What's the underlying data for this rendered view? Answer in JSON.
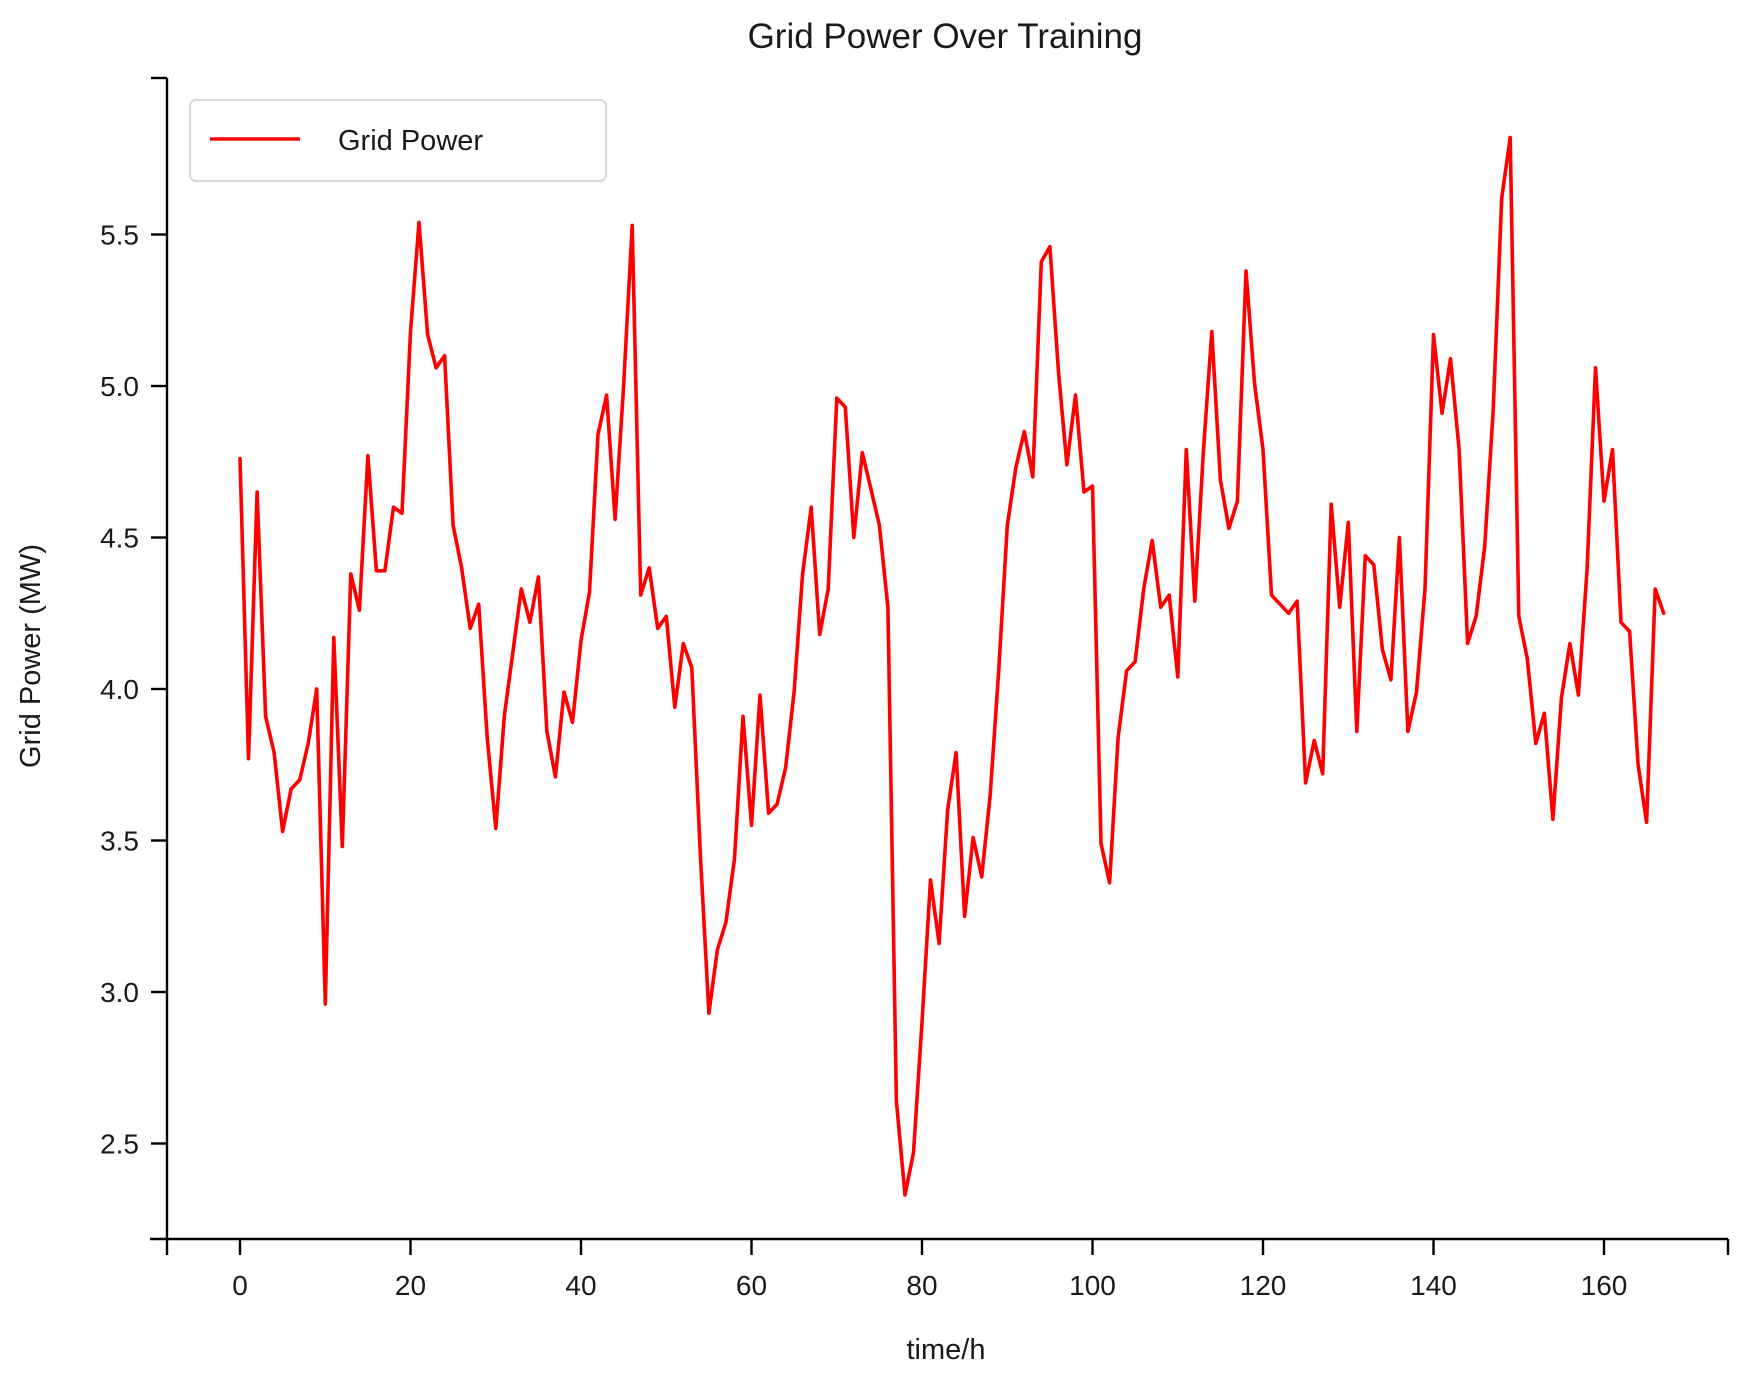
{
  "chart_data": {
    "type": "line",
    "title": "Grid Power Over Training",
    "xlabel": "time/h",
    "ylabel": "Grid Power (MW)",
    "xlim": [
      -8.5,
      175.5
    ],
    "ylim": [
      2.1,
      5.98
    ],
    "xticks": [
      0,
      20,
      40,
      60,
      80,
      100,
      120,
      140,
      160
    ],
    "yticks": [
      2.5,
      3.0,
      3.5,
      4.0,
      4.5,
      5.0,
      5.5
    ],
    "xtick_labels": [
      "0",
      "20",
      "40",
      "60",
      "80",
      "100",
      "120",
      "140",
      "160"
    ],
    "ytick_labels": [
      "2.5",
      "3.0",
      "3.5",
      "4.0",
      "4.5",
      "5.0",
      "5.5"
    ],
    "grid": false,
    "legend": {
      "placement": "top-left"
    },
    "series": [
      {
        "name": "Grid Power",
        "color": "#ff0000",
        "x": [
          0,
          1,
          2,
          3,
          4,
          5,
          6,
          7,
          8,
          9,
          10,
          11,
          12,
          13,
          14,
          15,
          16,
          17,
          18,
          19,
          20,
          21,
          22,
          23,
          24,
          25,
          26,
          27,
          28,
          29,
          30,
          31,
          32,
          33,
          34,
          35,
          36,
          37,
          38,
          39,
          40,
          41,
          42,
          43,
          44,
          45,
          46,
          47,
          48,
          49,
          50,
          51,
          52,
          53,
          54,
          55,
          56,
          57,
          58,
          59,
          60,
          61,
          62,
          63,
          64,
          65,
          66,
          67,
          68,
          69,
          70,
          71,
          72,
          73,
          74,
          75,
          76,
          77,
          78,
          79,
          80,
          81,
          82,
          83,
          84,
          85,
          86,
          87,
          88,
          89,
          90,
          91,
          92,
          93,
          94,
          95,
          96,
          97,
          98,
          99,
          100,
          101,
          102,
          103,
          104,
          105,
          106,
          107,
          108,
          109,
          110,
          111,
          112,
          113,
          114,
          115,
          116,
          117,
          118,
          119,
          120,
          121,
          122,
          123,
          124,
          125,
          126,
          127,
          128,
          129,
          130,
          131,
          132,
          133,
          134,
          135,
          136,
          137,
          138,
          139,
          140,
          141,
          142,
          143,
          144,
          145,
          146,
          147,
          148,
          149,
          150,
          151,
          152,
          153,
          154,
          155,
          156,
          157,
          158,
          159,
          160,
          161,
          162,
          163,
          164,
          165,
          166,
          167
        ],
        "y": [
          4.76,
          3.77,
          4.65,
          3.91,
          3.79,
          3.53,
          3.67,
          3.7,
          3.82,
          4.0,
          2.96,
          4.17,
          3.48,
          4.38,
          4.26,
          4.77,
          4.39,
          4.39,
          4.6,
          4.58,
          5.18,
          5.54,
          5.17,
          5.06,
          5.1,
          4.54,
          4.4,
          4.2,
          4.28,
          3.84,
          3.54,
          3.91,
          4.12,
          4.33,
          4.22,
          4.37,
          3.86,
          3.71,
          3.99,
          3.89,
          4.16,
          4.32,
          4.84,
          4.97,
          4.56,
          5.0,
          5.53,
          4.31,
          4.4,
          4.2,
          4.24,
          3.94,
          4.15,
          4.07,
          3.45,
          2.93,
          3.14,
          3.23,
          3.44,
          3.91,
          3.55,
          3.98,
          3.59,
          3.62,
          3.74,
          3.99,
          4.38,
          4.6,
          4.18,
          4.33,
          4.96,
          4.93,
          4.5,
          4.78,
          4.66,
          4.54,
          4.27,
          2.64,
          2.33,
          2.47,
          2.9,
          3.37,
          3.16,
          3.6,
          3.79,
          3.25,
          3.51,
          3.38,
          3.65,
          4.06,
          4.54,
          4.73,
          4.85,
          4.7,
          5.41,
          5.46,
          5.05,
          4.74,
          4.97,
          4.65,
          4.67,
          3.49,
          3.36,
          3.84,
          4.06,
          4.09,
          4.33,
          4.49,
          4.27,
          4.31,
          4.04,
          4.79,
          4.29,
          4.78,
          5.18,
          4.69,
          4.53,
          4.62,
          5.38,
          5.01,
          4.79,
          4.31,
          4.28,
          4.25,
          4.29,
          3.69,
          3.83,
          3.72,
          4.61,
          4.27,
          4.55,
          3.86,
          4.44,
          4.41,
          4.13,
          4.03,
          4.5,
          3.86,
          3.99,
          4.33,
          5.17,
          4.91,
          5.09,
          4.79,
          4.15,
          4.24,
          4.47,
          4.92,
          5.62,
          5.82,
          4.24,
          4.1,
          3.82,
          3.92,
          3.57,
          3.97,
          4.15,
          3.98,
          4.39,
          5.06,
          4.62,
          4.79,
          4.22,
          4.19,
          3.75,
          3.56,
          4.33,
          4.25
        ]
      }
    ]
  }
}
